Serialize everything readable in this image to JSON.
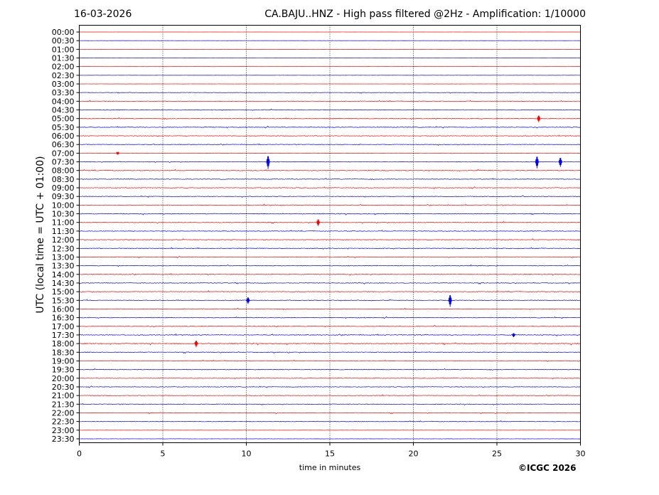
{
  "header": {
    "date": "16-03-2026",
    "title": "CA.BAJU..HNZ - High pass filtered @2Hz - Amplification: 1/10000"
  },
  "footer": {
    "copyright": "©ICGC 2026"
  },
  "chart_data": {
    "type": "line",
    "title": "CA.BAJU..HNZ - High pass filtered @2Hz - Amplification: 1/10000",
    "xlabel": "time in minutes",
    "ylabel": "UTC (local time = UTC + 01:00)",
    "xlim": [
      0,
      30
    ],
    "x_ticks": [
      0,
      5,
      10,
      15,
      20,
      25,
      30
    ],
    "grid": "vertical dotted lines at 5-minute intervals",
    "colors": {
      "red_trace": "#ff0000",
      "blue_trace": "#0000ff",
      "grid": "#000000"
    },
    "rows": [
      "00:00",
      "00:30",
      "01:00",
      "01:30",
      "02:00",
      "02:30",
      "03:00",
      "03:30",
      "04:00",
      "04:30",
      "05:00",
      "05:30",
      "06:00",
      "06:30",
      "07:00",
      "07:30",
      "08:00",
      "08:30",
      "09:00",
      "09:30",
      "10:00",
      "10:30",
      "11:00",
      "11:30",
      "12:00",
      "12:30",
      "13:00",
      "13:30",
      "14:00",
      "14:30",
      "15:00",
      "15:30",
      "16:00",
      "16:30",
      "17:00",
      "17:30",
      "18:00",
      "18:30",
      "19:00",
      "19:30",
      "20:00",
      "20:30",
      "21:00",
      "21:30",
      "22:00",
      "22:30",
      "23:00",
      "23:30"
    ],
    "row_colors": [
      "red",
      "blue",
      "red",
      "blue",
      "red",
      "blue",
      "red",
      "blue",
      "red",
      "blue",
      "red",
      "blue",
      "red",
      "blue",
      "red",
      "blue",
      "red",
      "blue",
      "red",
      "blue",
      "red",
      "blue",
      "red",
      "blue",
      "red",
      "blue",
      "red",
      "blue",
      "red",
      "blue",
      "red",
      "blue",
      "red",
      "blue",
      "red",
      "blue",
      "red",
      "blue",
      "red",
      "blue",
      "red",
      "blue",
      "red",
      "blue",
      "red",
      "blue",
      "red",
      "blue"
    ],
    "row_noise_level": [
      0.1,
      0.2,
      0.1,
      0.2,
      0.1,
      0.2,
      0.2,
      0.6,
      0.9,
      0.9,
      1.0,
      0.9,
      0.8,
      0.8,
      0.4,
      0.8,
      1.0,
      0.9,
      0.9,
      0.9,
      0.9,
      1.0,
      0.9,
      0.9,
      0.9,
      1.0,
      0.9,
      0.9,
      0.9,
      0.9,
      0.9,
      0.9,
      0.9,
      0.9,
      0.9,
      1.0,
      1.2,
      0.9,
      0.9,
      0.9,
      0.8,
      0.8,
      0.8,
      0.8,
      0.8,
      0.8,
      0.3,
      0.3
    ],
    "notable_events": [
      {
        "row": "05:00",
        "minute": 27.5,
        "amplitude": 5
      },
      {
        "row": "07:00",
        "minute": 2.3,
        "amplitude": 2
      },
      {
        "row": "07:30",
        "minute": 11.3,
        "amplitude": 10
      },
      {
        "row": "07:30",
        "minute": 27.4,
        "amplitude": 9
      },
      {
        "row": "07:30",
        "minute": 28.8,
        "amplitude": 7
      },
      {
        "row": "11:00",
        "minute": 14.3,
        "amplitude": 5
      },
      {
        "row": "15:30",
        "minute": 10.1,
        "amplitude": 5
      },
      {
        "row": "15:30",
        "minute": 22.2,
        "amplitude": 9
      },
      {
        "row": "18:00",
        "minute": 7.0,
        "amplitude": 5
      },
      {
        "row": "17:30",
        "minute": 26.0,
        "amplitude": 3
      }
    ]
  }
}
